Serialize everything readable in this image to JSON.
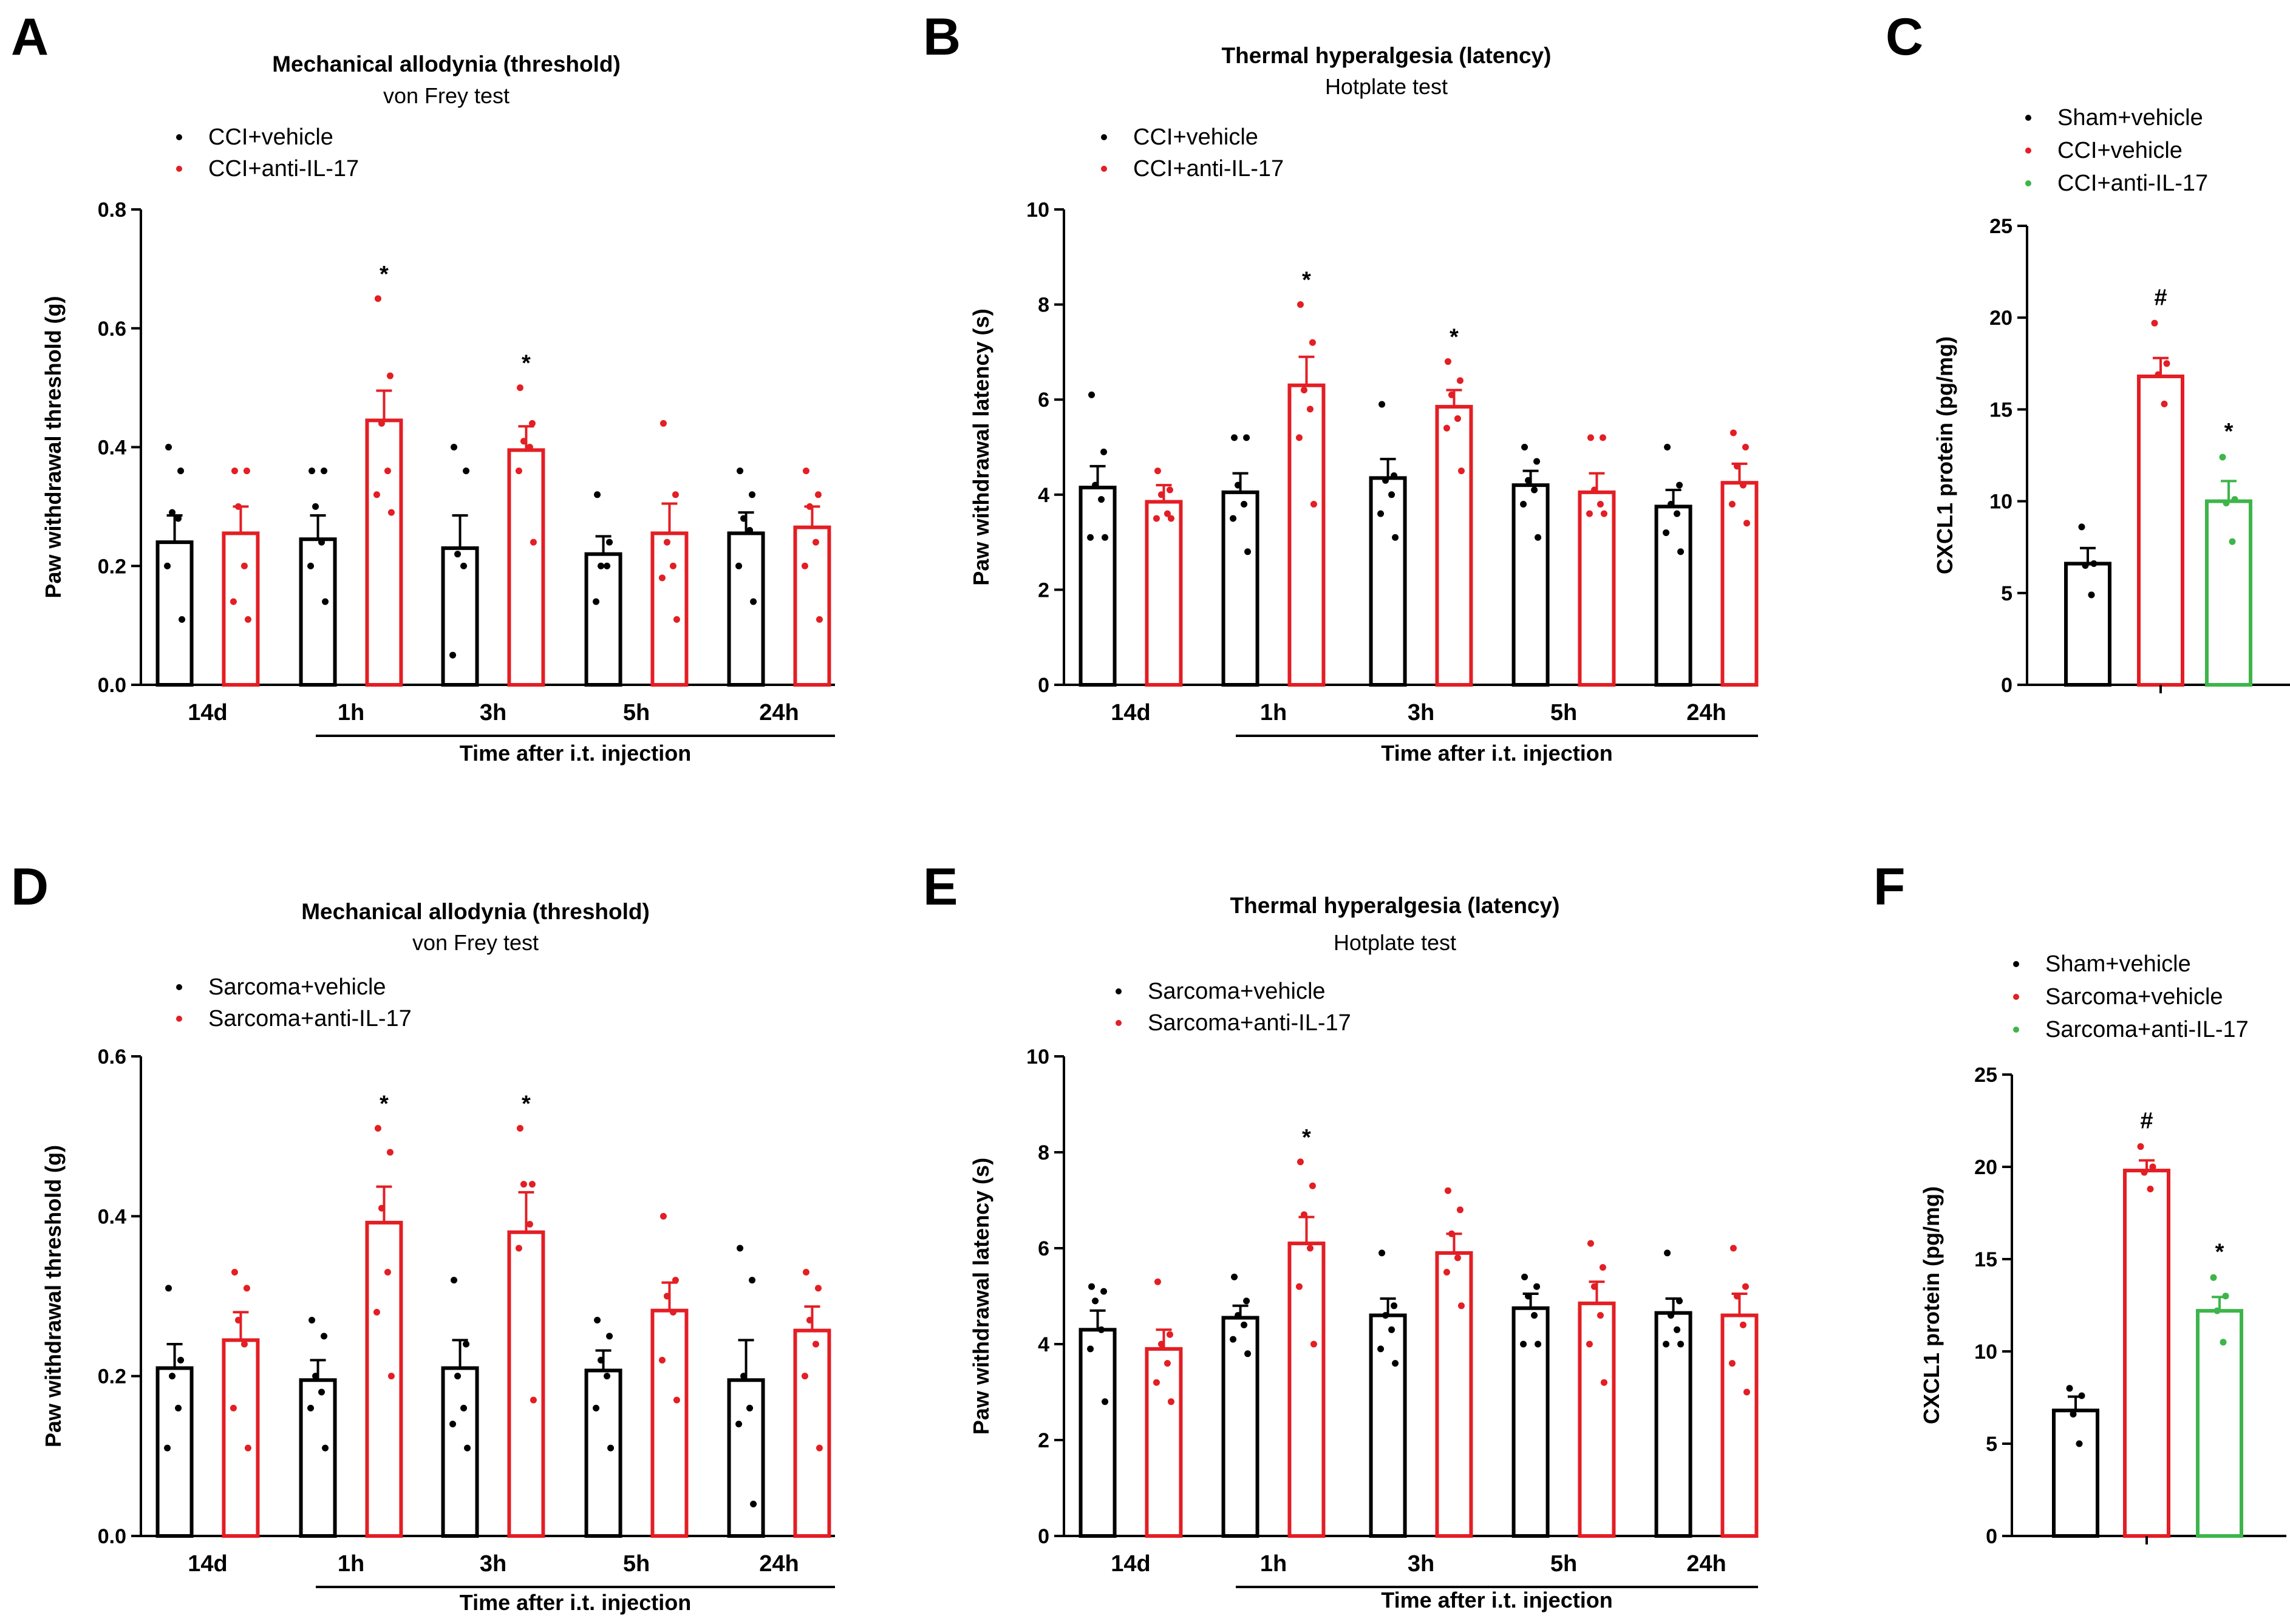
{
  "colors": {
    "black": "#000000",
    "red": "#e31e24",
    "green": "#3db54a"
  },
  "shared": {
    "bottom_axis_label": "Time after i.t. injection"
  },
  "panels": [
    {
      "letter": "A",
      "title": "Mechanical allodynia (threshold)",
      "subtitle": "von Frey test",
      "legend": [
        "CCI+vehicle",
        "CCI+anti-IL-17"
      ]
    },
    {
      "letter": "B",
      "title": "Thermal hyperalgesia (latency)",
      "subtitle": "Hotplate test",
      "legend": [
        "CCI+vehicle",
        "CCI+anti-IL-17"
      ]
    },
    {
      "letter": "C",
      "title": "",
      "subtitle": "",
      "legend": [
        "Sham+vehicle",
        "CCI+vehicle",
        "CCI+anti-IL-17"
      ]
    },
    {
      "letter": "D",
      "title": "Mechanical allodynia (threshold)",
      "subtitle": "von Frey test",
      "legend": [
        "Sarcoma+vehicle",
        "Sarcoma+anti-IL-17"
      ]
    },
    {
      "letter": "E",
      "title": "Thermal hyperalgesia (latency)",
      "subtitle": "Hotplate test",
      "legend": [
        "Sarcoma+vehicle",
        "Sarcoma+anti-IL-17"
      ]
    },
    {
      "letter": "F",
      "title": "",
      "subtitle": "",
      "legend": [
        "Sham+vehicle",
        "Sarcoma+vehicle",
        "Sarcoma+anti-IL-17"
      ]
    }
  ],
  "chart_data": [
    {
      "panel": "A",
      "type": "bar",
      "title": "Mechanical allodynia (threshold)",
      "subtitle": "von Frey test",
      "ylabel": "Paw withdrawal threshold (g)",
      "xlabel": "Time after i.t. injection",
      "ylim": [
        0,
        0.8
      ],
      "yticks": [
        0,
        0.2,
        0.4,
        0.6,
        0.8
      ],
      "ytick_labels": [
        "0.0",
        "0.2",
        "0.4",
        "0.6",
        "0.8"
      ],
      "categories": [
        "14d",
        "1h",
        "3h",
        "5h",
        "24h"
      ],
      "series": [
        {
          "name": "CCI+vehicle",
          "color": "#000000",
          "values": [
            0.24,
            0.245,
            0.23,
            0.22,
            0.255
          ],
          "errors": [
            0.045,
            0.04,
            0.055,
            0.03,
            0.035
          ],
          "points": [
            [
              0.4,
              0.36,
              0.29,
              0.28,
              0.2,
              0.11
            ],
            [
              0.36,
              0.36,
              0.3,
              0.24,
              0.2,
              0.14
            ],
            [
              0.4,
              0.36,
              0.22,
              0.2,
              0.05
            ],
            [
              0.32,
              0.24,
              0.2,
              0.2,
              0.14
            ],
            [
              0.36,
              0.32,
              0.28,
              0.26,
              0.2,
              0.14
            ]
          ]
        },
        {
          "name": "CCI+anti-IL-17",
          "color": "#e31e24",
          "values": [
            0.255,
            0.445,
            0.395,
            0.255,
            0.265
          ],
          "errors": [
            0.045,
            0.05,
            0.04,
            0.05,
            0.035
          ],
          "points": [
            [
              0.36,
              0.36,
              0.3,
              0.2,
              0.14,
              0.11
            ],
            [
              0.65,
              0.52,
              0.44,
              0.36,
              0.32,
              0.29
            ],
            [
              0.5,
              0.44,
              0.41,
              0.4,
              0.36,
              0.24
            ],
            [
              0.44,
              0.32,
              0.24,
              0.2,
              0.18,
              0.11
            ],
            [
              0.36,
              0.32,
              0.3,
              0.24,
              0.2,
              0.11
            ]
          ]
        }
      ],
      "significance": [
        {
          "category": "1h",
          "series": 1,
          "mark": "*"
        },
        {
          "category": "3h",
          "series": 1,
          "mark": "*"
        }
      ]
    },
    {
      "panel": "B",
      "type": "bar",
      "title": "Thermal hyperalgesia (latency)",
      "subtitle": "Hotplate test",
      "ylabel": "Paw withdrawal latency (s)",
      "xlabel": "Time after i.t. injection",
      "ylim": [
        0,
        10
      ],
      "yticks": [
        0,
        2,
        4,
        6,
        8,
        10
      ],
      "ytick_labels": [
        "0",
        "2",
        "4",
        "6",
        "8",
        "10"
      ],
      "categories": [
        "14d",
        "1h",
        "3h",
        "5h",
        "24h"
      ],
      "series": [
        {
          "name": "CCI+vehicle",
          "color": "#000000",
          "values": [
            4.15,
            4.05,
            4.35,
            4.2,
            3.75
          ],
          "errors": [
            0.45,
            0.4,
            0.4,
            0.3,
            0.35
          ],
          "points": [
            [
              6.1,
              4.9,
              4.2,
              3.9,
              3.1,
              3.1
            ],
            [
              5.2,
              5.2,
              4.2,
              3.8,
              3.5,
              2.8
            ],
            [
              5.9,
              4.4,
              4.3,
              4.0,
              3.6,
              3.1
            ],
            [
              5.0,
              4.7,
              4.3,
              4.1,
              3.8,
              3.1
            ],
            [
              5.0,
              4.2,
              3.8,
              3.6,
              3.2,
              2.8
            ]
          ]
        },
        {
          "name": "CCI+anti-IL-17",
          "color": "#e31e24",
          "values": [
            3.85,
            6.3,
            5.85,
            4.05,
            4.25
          ],
          "errors": [
            0.35,
            0.6,
            0.35,
            0.4,
            0.4
          ],
          "points": [
            [
              4.5,
              4.1,
              4.0,
              3.6,
              3.5,
              3.5
            ],
            [
              8.0,
              7.2,
              6.2,
              5.8,
              5.2,
              3.8
            ],
            [
              6.8,
              6.4,
              6.1,
              5.6,
              5.4,
              4.5
            ],
            [
              5.2,
              5.2,
              4.1,
              3.8,
              3.6,
              3.6
            ],
            [
              5.3,
              5.0,
              4.6,
              4.2,
              3.8,
              3.4
            ]
          ]
        }
      ],
      "significance": [
        {
          "category": "1h",
          "series": 1,
          "mark": "*"
        },
        {
          "category": "3h",
          "series": 1,
          "mark": "*"
        }
      ]
    },
    {
      "panel": "C",
      "type": "bar",
      "title": "",
      "ylabel": "CXCL1 protein (pg/mg)",
      "xlabel": "",
      "ylim": [
        0,
        25
      ],
      "yticks": [
        0,
        5,
        10,
        15,
        20,
        25
      ],
      "ytick_labels": [
        "0",
        "5",
        "10",
        "15",
        "20",
        "25"
      ],
      "categories": [
        "Sham+vehicle",
        "CCI+vehicle",
        "CCI+anti-IL-17"
      ],
      "values": [
        6.6,
        16.8,
        10.0
      ],
      "errors": [
        0.85,
        1.0,
        1.1
      ],
      "bar_colors": [
        "#000000",
        "#e31e24",
        "#3db54a"
      ],
      "points": [
        [
          8.6,
          6.6,
          6.5,
          4.9
        ],
        [
          19.7,
          17.5,
          16.9,
          15.3
        ],
        [
          12.4,
          10.1,
          9.9,
          7.8
        ]
      ],
      "significance": [
        {
          "category": "CCI+vehicle",
          "mark": "#"
        },
        {
          "category": "CCI+anti-IL-17",
          "mark": "*"
        }
      ]
    },
    {
      "panel": "D",
      "type": "bar",
      "title": "Mechanical allodynia (threshold)",
      "subtitle": "von Frey test",
      "ylabel": "Paw withdrawal threshold (g)",
      "xlabel": "Time after i.t. injection",
      "ylim": [
        0,
        0.6
      ],
      "yticks": [
        0,
        0.2,
        0.4,
        0.6
      ],
      "ytick_labels": [
        "0.0",
        "0.2",
        "0.4",
        "0.6"
      ],
      "categories": [
        "14d",
        "1h",
        "3h",
        "5h",
        "24h"
      ],
      "series": [
        {
          "name": "Sarcoma+vehicle",
          "color": "#000000",
          "values": [
            0.21,
            0.195,
            0.21,
            0.207,
            0.195
          ],
          "errors": [
            0.03,
            0.025,
            0.035,
            0.025,
            0.05
          ],
          "points": [
            [
              0.31,
              0.22,
              0.2,
              0.16,
              0.11
            ],
            [
              0.27,
              0.25,
              0.2,
              0.18,
              0.16,
              0.11
            ],
            [
              0.32,
              0.24,
              0.2,
              0.16,
              0.14,
              0.11
            ],
            [
              0.27,
              0.25,
              0.22,
              0.2,
              0.16,
              0.11
            ],
            [
              0.36,
              0.32,
              0.2,
              0.16,
              0.14,
              0.04
            ]
          ]
        },
        {
          "name": "Sarcoma+anti-IL-17",
          "color": "#e31e24",
          "values": [
            0.245,
            0.392,
            0.38,
            0.282,
            0.257
          ],
          "errors": [
            0.035,
            0.045,
            0.05,
            0.035,
            0.03
          ],
          "points": [
            [
              0.33,
              0.31,
              0.27,
              0.24,
              0.16,
              0.11
            ],
            [
              0.51,
              0.48,
              0.41,
              0.33,
              0.28,
              0.2
            ],
            [
              0.51,
              0.44,
              0.44,
              0.39,
              0.36,
              0.17
            ],
            [
              0.4,
              0.32,
              0.3,
              0.28,
              0.22,
              0.17
            ],
            [
              0.33,
              0.31,
              0.27,
              0.24,
              0.2,
              0.11
            ]
          ]
        }
      ],
      "significance": [
        {
          "category": "1h",
          "series": 1,
          "mark": "*"
        },
        {
          "category": "3h",
          "series": 1,
          "mark": "*"
        }
      ]
    },
    {
      "panel": "E",
      "type": "bar",
      "title": "Thermal hyperalgesia (latency)",
      "subtitle": "Hotplate test",
      "ylabel": "Paw withdrawal latency (s)",
      "xlabel": "Time after i.t. injection",
      "ylim": [
        0,
        10
      ],
      "yticks": [
        0,
        2,
        4,
        6,
        8,
        10
      ],
      "ytick_labels": [
        "0",
        "2",
        "4",
        "6",
        "8",
        "10"
      ],
      "categories": [
        "14d",
        "1h",
        "3h",
        "5h",
        "24h"
      ],
      "series": [
        {
          "name": "Sarcoma+vehicle",
          "color": "#000000",
          "values": [
            4.3,
            4.55,
            4.6,
            4.75,
            4.65
          ],
          "errors": [
            0.4,
            0.25,
            0.35,
            0.3,
            0.3
          ],
          "points": [
            [
              5.2,
              5.1,
              4.9,
              4.3,
              3.9,
              2.8
            ],
            [
              5.4,
              4.9,
              4.6,
              4.4,
              4.1,
              3.8
            ],
            [
              5.9,
              4.8,
              4.6,
              4.3,
              3.9,
              3.6
            ],
            [
              5.4,
              5.2,
              5.0,
              4.6,
              4.0,
              4.0
            ],
            [
              5.9,
              4.9,
              4.6,
              4.3,
              4.0,
              4.0
            ]
          ]
        },
        {
          "name": "Sarcoma+anti-IL-17",
          "color": "#e31e24",
          "values": [
            3.9,
            6.1,
            5.9,
            4.85,
            4.6
          ],
          "errors": [
            0.4,
            0.55,
            0.4,
            0.45,
            0.45
          ],
          "points": [
            [
              5.3,
              4.2,
              4.0,
              3.6,
              3.2,
              2.8
            ],
            [
              7.8,
              7.3,
              6.7,
              6.0,
              5.2,
              4.0
            ],
            [
              7.2,
              6.8,
              6.3,
              5.8,
              5.5,
              4.8
            ],
            [
              6.1,
              5.6,
              5.2,
              4.6,
              4.0,
              3.2
            ],
            [
              6.0,
              5.2,
              5.0,
              4.4,
              3.6,
              3.0
            ]
          ]
        }
      ],
      "significance": [
        {
          "category": "1h",
          "series": 1,
          "mark": "*"
        }
      ]
    },
    {
      "panel": "F",
      "type": "bar",
      "title": "",
      "ylabel": "CXCL1 protein (pg/mg)",
      "xlabel": "",
      "ylim": [
        0,
        25
      ],
      "yticks": [
        0,
        5,
        10,
        15,
        20,
        25
      ],
      "ytick_labels": [
        "0",
        "5",
        "10",
        "15",
        "20",
        "25"
      ],
      "categories": [
        "Sham+vehicle",
        "Sarcoma+vehicle",
        "Sarcoma+anti-IL-17"
      ],
      "values": [
        6.8,
        19.8,
        12.2
      ],
      "errors": [
        0.75,
        0.55,
        0.75
      ],
      "bar_colors": [
        "#000000",
        "#e31e24",
        "#3db54a"
      ],
      "points": [
        [
          8.0,
          7.6,
          6.6,
          5.0
        ],
        [
          21.1,
          20.0,
          19.7,
          18.8
        ],
        [
          14.0,
          13.0,
          12.2,
          10.5
        ]
      ],
      "significance": [
        {
          "category": "Sarcoma+vehicle",
          "mark": "#"
        },
        {
          "category": "Sarcoma+anti-IL-17",
          "mark": "*"
        }
      ]
    }
  ]
}
